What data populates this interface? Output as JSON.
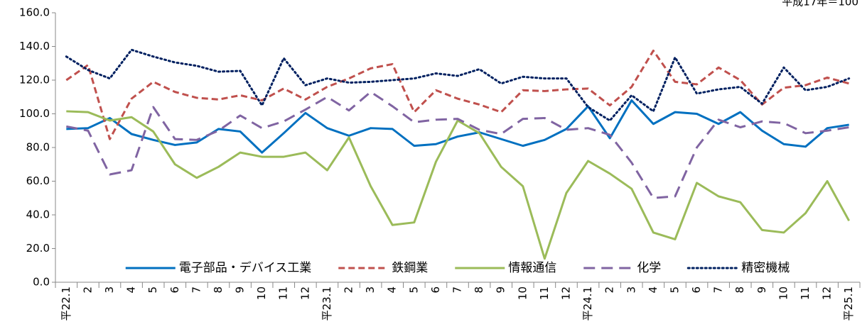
{
  "chart_data": {
    "type": "line",
    "annotation": "平成17年＝100",
    "categories": [
      "平22.1",
      "2",
      "3",
      "4",
      "5",
      "6",
      "7",
      "8",
      "9",
      "10",
      "11",
      "12",
      "平23.1",
      "2",
      "3",
      "4",
      "5",
      "6",
      "7",
      "8",
      "9",
      "10",
      "11",
      "12",
      "平24.1",
      "2",
      "3",
      "4",
      "5",
      "6",
      "7",
      "8",
      "9",
      "10",
      "11",
      "12",
      "平25.1"
    ],
    "ylim": [
      0,
      160
    ],
    "yticks": [
      {
        "value": 0,
        "label": "0.0"
      },
      {
        "value": 20,
        "label": "20.0"
      },
      {
        "value": 40,
        "label": "40.0"
      },
      {
        "value": 60,
        "label": "60.0"
      },
      {
        "value": 80,
        "label": "80.0"
      },
      {
        "value": 100,
        "label": "100.0"
      },
      {
        "value": 120,
        "label": "120.0"
      },
      {
        "value": 140,
        "label": "140.0"
      },
      {
        "value": 160,
        "label": "160.0"
      }
    ],
    "grid": false,
    "legend": "bottom",
    "series": [
      {
        "name": "電子部品・デバイス工業",
        "color": "#0070c0",
        "dash": "solid",
        "values": [
          91,
          91.5,
          97.5,
          88,
          84.5,
          81.5,
          83,
          91,
          89.5,
          77,
          88.5,
          100.5,
          91.5,
          87,
          91.5,
          91,
          81,
          82,
          86.5,
          89,
          85,
          81,
          84.5,
          91,
          104.5,
          85.5,
          108,
          94,
          101,
          100,
          94,
          101,
          90,
          82,
          80.5,
          91.5,
          93.5
        ]
      },
      {
        "name": "鉄鋼業",
        "color": "#c0504d",
        "dash": "dashed",
        "values": [
          120,
          129,
          85,
          109,
          119,
          113,
          109.5,
          108.5,
          111,
          108,
          115,
          108.5,
          116,
          121,
          127,
          129.5,
          101,
          114,
          109,
          105.5,
          101,
          114,
          113.5,
          114.5,
          115,
          105,
          116,
          137.5,
          119,
          117.5,
          127.5,
          120,
          105.5,
          115.5,
          117,
          121.5,
          118
        ]
      },
      {
        "name": "情報通信",
        "color": "#9bbb59",
        "dash": "solid",
        "values": [
          101.5,
          101,
          96,
          98,
          89.5,
          70,
          62,
          68.5,
          77,
          74.5,
          74.5,
          77,
          66.5,
          86,
          57,
          34,
          35.5,
          71.5,
          96,
          88.5,
          68.5,
          57,
          14,
          53,
          72,
          64.5,
          55.5,
          29.5,
          25.5,
          59,
          51,
          47.5,
          31,
          29.5,
          41,
          60,
          36.5
        ]
      },
      {
        "name": "化学",
        "color": "#8064a2",
        "dash": "long-dashed",
        "values": [
          92.5,
          90,
          64,
          66.5,
          104,
          85,
          84.5,
          90,
          99,
          91.5,
          95.5,
          102.5,
          110,
          102,
          113,
          104.5,
          95,
          96.5,
          97,
          90.5,
          88,
          97,
          97.5,
          90.5,
          91.5,
          87.5,
          71,
          50,
          51,
          80,
          96.5,
          92,
          95.5,
          94.5,
          88.5,
          90,
          92
        ]
      },
      {
        "name": "精密機械",
        "color": "#002060",
        "dash": "dotted",
        "values": [
          134,
          126,
          121,
          138,
          134,
          130.5,
          128.5,
          125,
          125.5,
          105,
          133,
          117,
          121,
          118.5,
          119,
          120,
          121,
          124,
          122.5,
          126.5,
          118,
          122,
          121,
          121,
          104,
          96,
          111,
          101.5,
          133.5,
          112,
          114.5,
          116,
          106,
          127.5,
          114,
          116,
          121
        ]
      }
    ]
  }
}
